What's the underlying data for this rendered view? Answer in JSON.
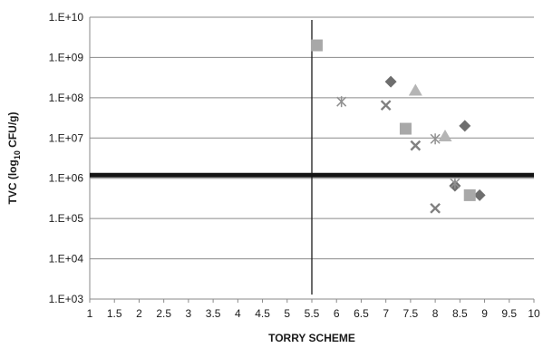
{
  "chart_data": {
    "type": "scatter",
    "title": "",
    "xlabel": "TORRY SCHEME",
    "ylabel_main": "TVC (log",
    "ylabel_sub": "10",
    "ylabel_tail": " CFU/g)",
    "xlim": [
      1,
      10
    ],
    "ylim_log10": [
      3,
      10
    ],
    "y_scale": "log",
    "grid": "horizontal",
    "x_ticks": [
      "1",
      "1.5",
      "2",
      "2.5",
      "3",
      "3.5",
      "4",
      "4.5",
      "5",
      "5.5",
      "6",
      "6.5",
      "7",
      "7.5",
      "8",
      "8.5",
      "9",
      "9.5",
      "10"
    ],
    "y_ticks": [
      "1.E+03",
      "1.E+04",
      "1.E+05",
      "1.E+06",
      "1.E+07",
      "1.E+08",
      "1.E+09",
      "1.E+10"
    ],
    "reference_lines": [
      {
        "orientation": "vertical",
        "x": 5.5
      },
      {
        "orientation": "horizontal",
        "y": 1200000
      }
    ],
    "series": [
      {
        "marker": "diamond",
        "color": "#6e6e6e",
        "points": [
          [
            7.1,
            250000000
          ],
          [
            8.6,
            20000000
          ],
          [
            8.9,
            380000
          ],
          [
            8.4,
            650000
          ]
        ]
      },
      {
        "marker": "square",
        "color": "#a8a8a8",
        "points": [
          [
            5.6,
            2000000000
          ],
          [
            7.4,
            17000000
          ],
          [
            8.7,
            380000
          ]
        ]
      },
      {
        "marker": "triangle",
        "color": "#b5b5b5",
        "points": [
          [
            7.6,
            150000000
          ],
          [
            8.2,
            11000000
          ]
        ]
      },
      {
        "marker": "x",
        "color": "#808080",
        "points": [
          [
            7.0,
            65000000
          ],
          [
            7.6,
            6500000
          ],
          [
            8.0,
            180000
          ]
        ]
      },
      {
        "marker": "star",
        "color": "#909090",
        "points": [
          [
            6.1,
            80000000
          ],
          [
            8.0,
            9500000
          ],
          [
            8.4,
            750000
          ]
        ]
      }
    ]
  }
}
